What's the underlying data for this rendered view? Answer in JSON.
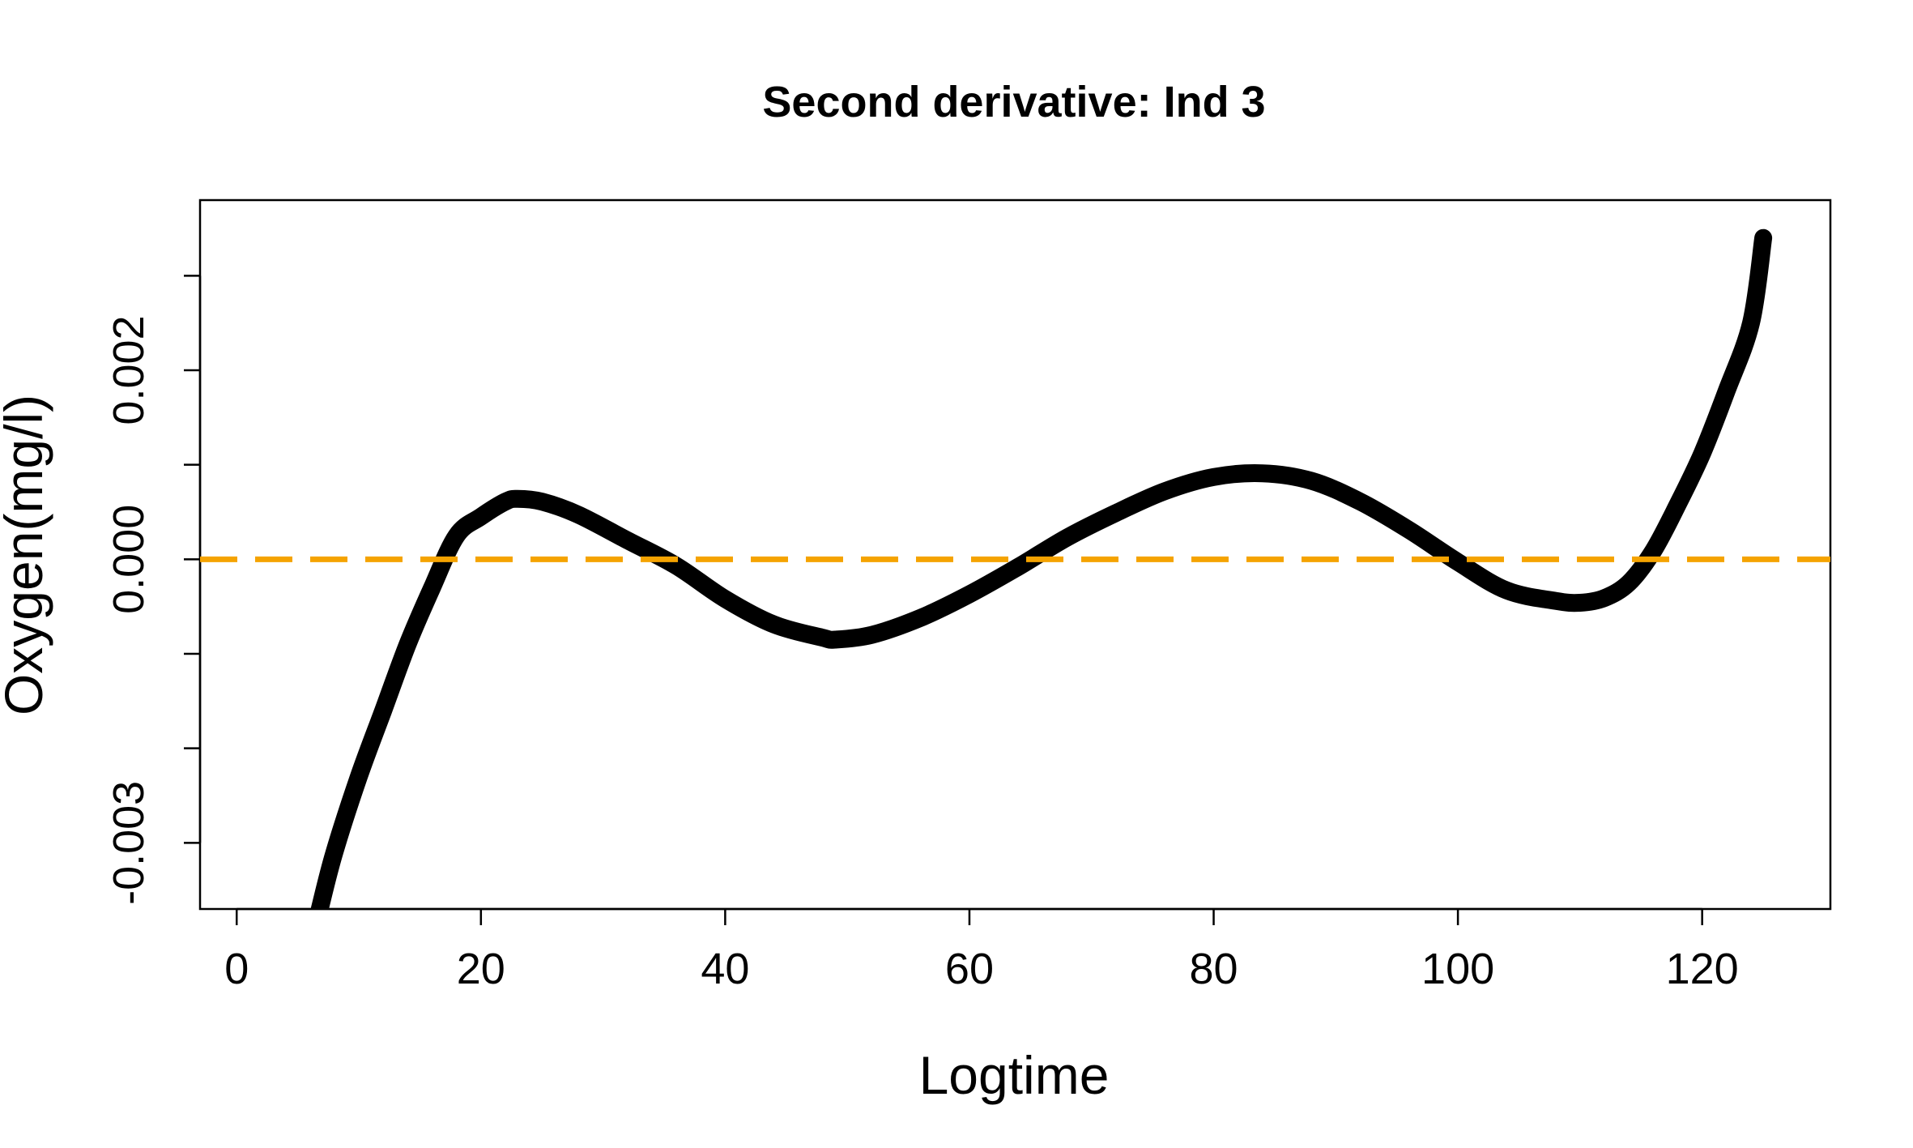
{
  "chart_data": {
    "type": "line",
    "title": "Second derivative: Ind 3",
    "xlabel": "Logtime",
    "ylabel": "Oxygen(mg/l)",
    "xlim": [
      -3,
      130.5
    ],
    "ylim": [
      -0.0037,
      0.0038
    ],
    "x_ticks": [
      0,
      20,
      40,
      60,
      80,
      100,
      120
    ],
    "x_tick_labels": [
      "0",
      "20",
      "40",
      "60",
      "80",
      "100",
      "120"
    ],
    "y_ticks": [
      -0.004,
      -0.003,
      -0.002,
      -0.001,
      0.0,
      0.001,
      0.002,
      0.003
    ],
    "y_tick_labels": [
      {
        "value": -0.003,
        "label": "-0.003"
      },
      {
        "value": 0.0,
        "label": "0.000"
      },
      {
        "value": 0.002,
        "label": "0.002"
      }
    ],
    "grid": false,
    "series": [
      {
        "color": "#000000",
        "x": [
          6.8,
          8,
          10,
          12,
          14,
          16,
          18,
          20,
          22,
          23,
          25,
          28,
          32,
          36,
          40,
          44,
          48,
          49,
          52,
          56,
          60,
          64,
          68,
          72,
          76,
          80,
          84,
          88,
          92,
          96,
          100,
          104,
          108,
          110,
          112,
          114,
          116,
          118,
          120,
          122,
          124,
          125
        ],
        "y": [
          -0.0037,
          -0.0031,
          -0.0023,
          -0.0016,
          -0.0009,
          -0.0003,
          0.00025,
          0.00045,
          0.00061,
          0.00064,
          0.00061,
          0.00047,
          0.0002,
          -7e-05,
          -0.00042,
          -0.00069,
          -0.00083,
          -0.00085,
          -0.0008,
          -0.00062,
          -0.00037,
          -8e-05,
          0.00023,
          0.00049,
          0.00072,
          0.00087,
          0.00091,
          0.00083,
          0.00061,
          0.00031,
          -3e-05,
          -0.00033,
          -0.00044,
          -0.00046,
          -0.00041,
          -0.00025,
          9e-05,
          0.00058,
          0.00112,
          0.00178,
          0.0025,
          0.0034
        ]
      }
    ],
    "reference_line": {
      "y": 0.0,
      "color": "#f5a300",
      "style": "dashed"
    }
  }
}
